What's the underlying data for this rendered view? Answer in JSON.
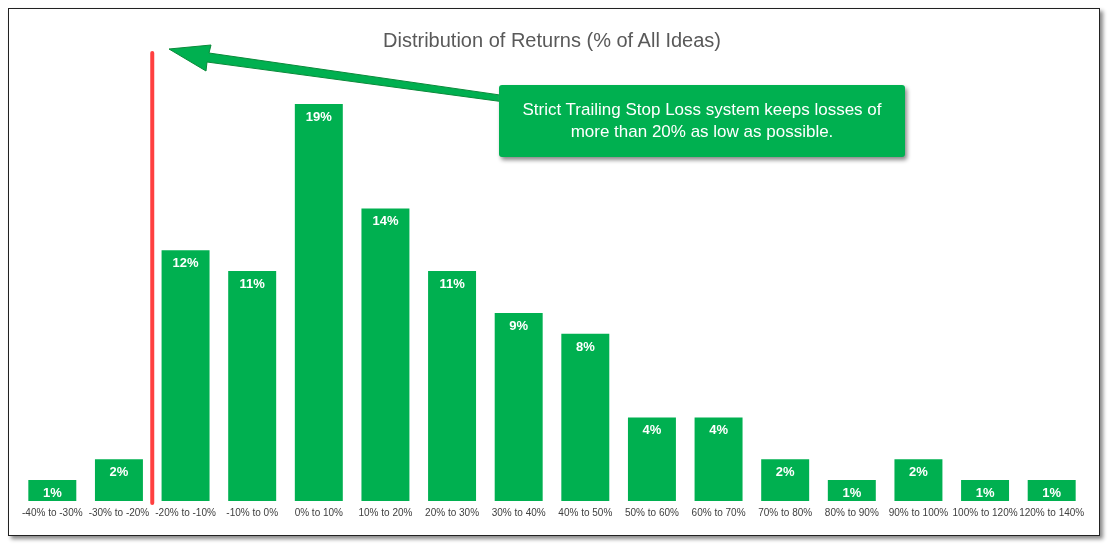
{
  "chart_data": {
    "type": "bar",
    "title": "Distribution of Returns (% of All Ideas)",
    "categories": [
      "-40% to -30%",
      "-30% to -20%",
      "-20% to -10%",
      "-10% to 0%",
      "0% to 10%",
      "10% to 20%",
      "20% to 30%",
      "30% to 40%",
      "40% to 50%",
      "50% to 60%",
      "60% to 70%",
      "70% to 80%",
      "80% to 90%",
      "90% to 100%",
      "100% to 120%",
      "120% to 140%"
    ],
    "values": [
      1,
      2,
      12,
      11,
      19,
      14,
      11,
      9,
      8,
      4,
      4,
      2,
      1,
      2,
      1,
      1
    ],
    "value_labels": [
      "1%",
      "2%",
      "12%",
      "11%",
      "19%",
      "14%",
      "11%",
      "9%",
      "8%",
      "4%",
      "4%",
      "2%",
      "1%",
      "2%",
      "1%",
      "1%"
    ],
    "color": "#00b050",
    "tick_labels": "x",
    "ref_lines": [
      {
        "axis": "x",
        "value": "-20% to -10%",
        "color": "#ff4040"
      }
    ],
    "annotations": [
      "Strict Trailing Stop Loss system keeps losses of more than 20% as low as possible."
    ],
    "grid": false,
    "legend": false
  }
}
